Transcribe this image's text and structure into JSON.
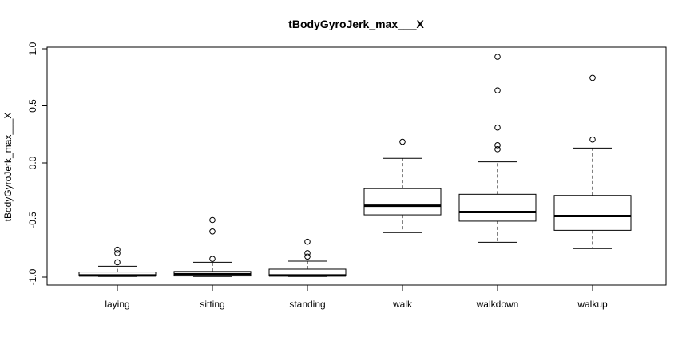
{
  "chart_data": {
    "type": "boxplot",
    "title": "tBodyGyroJerk_max___X",
    "xlabel": "",
    "ylabel": "tBodyGyroJerk_max___X",
    "ylim": [
      -1.05,
      1.0
    ],
    "yticks": [
      -1.0,
      -0.5,
      0.0,
      0.5,
      1.0
    ],
    "ytick_labels": [
      "-1.0",
      "-0.5",
      "0.0",
      "0.5",
      "1.0"
    ],
    "categories": [
      "laying",
      "sitting",
      "standing",
      "walk",
      "walkdown",
      "walkup"
    ],
    "boxes": [
      {
        "label": "laying",
        "whisker_low": -0.995,
        "q1": -0.99,
        "median": -0.985,
        "q3": -0.955,
        "whisker_high": -0.905,
        "outliers": [
          -0.76,
          -0.79,
          -0.87
        ]
      },
      {
        "label": "sitting",
        "whisker_low": -0.995,
        "q1": -0.99,
        "median": -0.975,
        "q3": -0.95,
        "whisker_high": -0.87,
        "outliers": [
          -0.5,
          -0.6,
          -0.84
        ]
      },
      {
        "label": "standing",
        "whisker_low": -0.995,
        "q1": -0.99,
        "median": -0.985,
        "q3": -0.93,
        "whisker_high": -0.86,
        "outliers": [
          -0.69,
          -0.79,
          -0.82
        ]
      },
      {
        "label": "walk",
        "whisker_low": -0.61,
        "q1": -0.455,
        "median": -0.375,
        "q3": -0.225,
        "whisker_high": 0.04,
        "outliers": [
          0.185
        ]
      },
      {
        "label": "walkdown",
        "whisker_low": -0.695,
        "q1": -0.51,
        "median": -0.43,
        "q3": -0.275,
        "whisker_high": 0.01,
        "outliers": [
          0.93,
          0.635,
          0.31,
          0.155,
          0.12
        ]
      },
      {
        "label": "walkup",
        "whisker_low": -0.75,
        "q1": -0.59,
        "median": -0.465,
        "q3": -0.285,
        "whisker_high": 0.13,
        "outliers": [
          0.745,
          0.205
        ]
      }
    ]
  }
}
